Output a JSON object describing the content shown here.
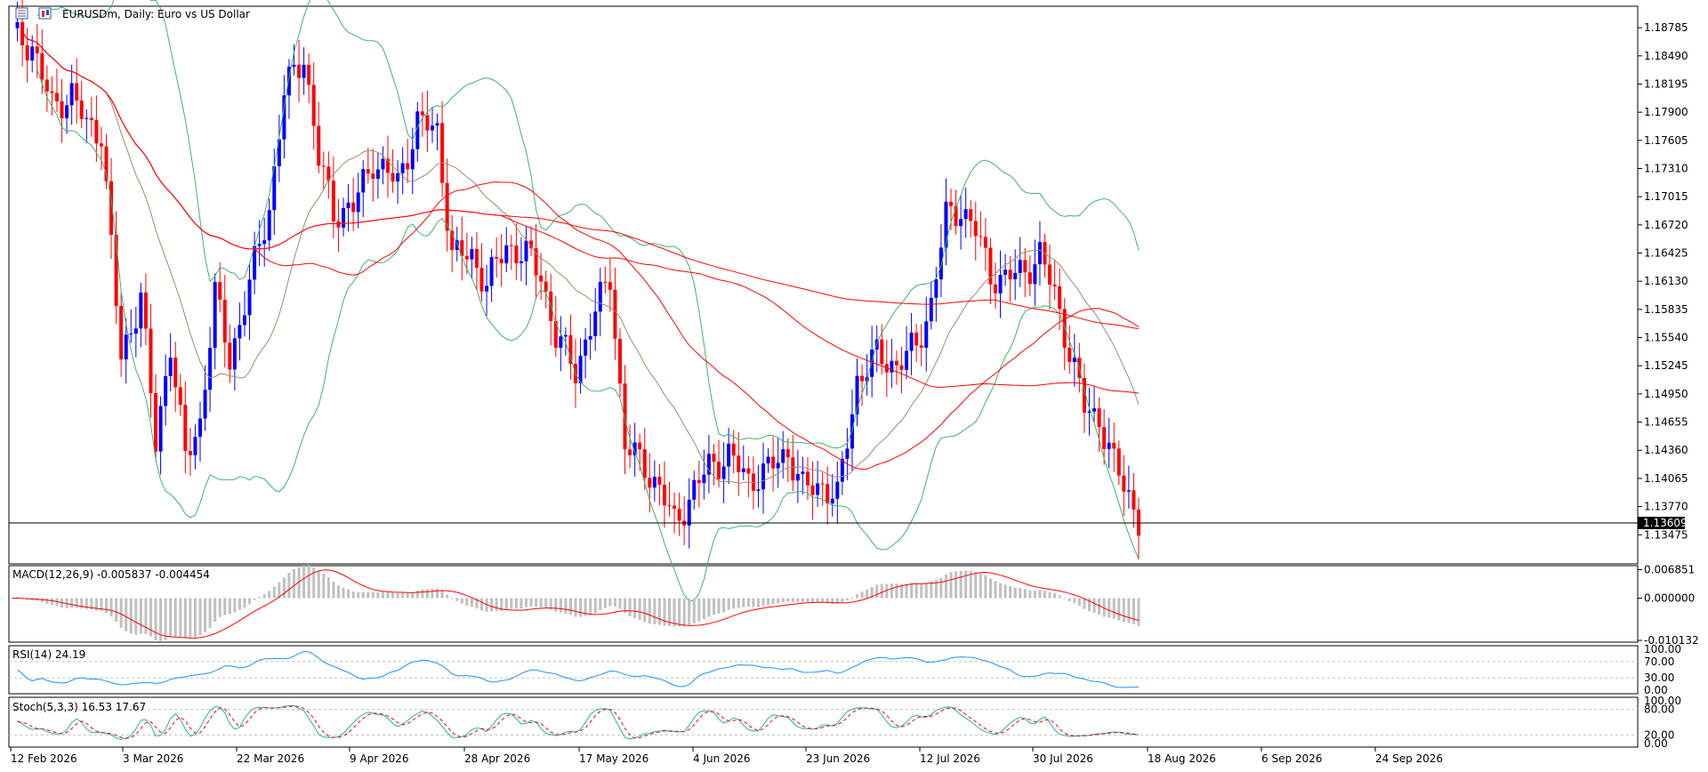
{
  "chart_data": {
    "type": "candlestick",
    "title": "EURUSDm, Daily:  Euro vs US Dollar",
    "symbol": "EURUSDm",
    "timeframe": "Daily",
    "current_price": "1.13609",
    "price_axis": {
      "ticks": [
        "1.18785",
        "1.18490",
        "1.18195",
        "1.17900",
        "1.17605",
        "1.17310",
        "1.17015",
        "1.16720",
        "1.16425",
        "1.16130",
        "1.15835",
        "1.15540",
        "1.15245",
        "1.14950",
        "1.14655",
        "1.14360",
        "1.14065",
        "1.13770",
        "1.13475"
      ],
      "ylim": [
        1.1317,
        1.1901
      ]
    },
    "x_ticks": [
      "12 Feb 2026",
      "3 Mar 2026",
      "22 Mar 2026",
      "9 Apr 2026",
      "28 Apr 2026",
      "17 May 2026",
      "4 Jun 2026",
      "23 Jun 2026",
      "12 Jul 2026",
      "30 Jul 2026",
      "18 Aug 2026",
      "6 Sep 2026",
      "24 Sep 2026"
    ],
    "colors": {
      "up": "#0000ff",
      "down": "#ff0000",
      "sma_fast": "#a0896b",
      "ma": "#ff0000",
      "bands": "#3cb371",
      "grid": "#c0c0c0",
      "histogram": "#c0c0c0",
      "signal": "#ff0000",
      "rsi": "#1e90ff",
      "stoch_main": "#20b2aa",
      "stoch_signal": "#ff0000"
    },
    "macd": {
      "label": "MACD(12,26,9) -0.005837 -0.004454",
      "ticks": [
        "0.006851",
        "0.000000",
        "-0.010132"
      ],
      "ylim": [
        -0.01055,
        0.0078
      ]
    },
    "rsi": {
      "label": "RSI(14) 24.19",
      "ticks": [
        "100.00",
        "70.00",
        "30.00",
        "0.00"
      ],
      "ylim": [
        0,
        100
      ]
    },
    "stoch": {
      "label": "Stoch(5,3,3) 16.53 17.67",
      "ticks": [
        "100.00",
        "80.00",
        "20.00",
        "0.00"
      ],
      "ylim": [
        0,
        100
      ]
    }
  }
}
